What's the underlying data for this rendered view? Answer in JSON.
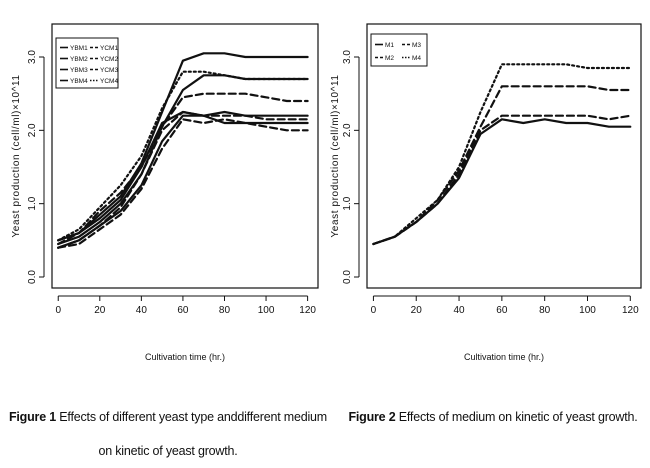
{
  "chart_data": [
    {
      "type": "line",
      "ylabel": "Yeast production (cell/ml)×10^11",
      "xlabel": "Cultivation time (hr.)",
      "xticks": [
        0,
        20,
        40,
        60,
        80,
        100,
        120
      ],
      "yticks": [
        "0.0",
        "1.0",
        "2.0",
        "3.0"
      ],
      "xlim": [
        -3,
        125
      ],
      "ylim": [
        -0.15,
        3.45
      ],
      "legend_position": "top-left",
      "legend_rows": [
        [
          "YBM1",
          "YCM1"
        ],
        [
          "YBM2",
          "YCM2"
        ],
        [
          "YBM3",
          "YCM3"
        ],
        [
          "YBM4",
          "YCM4"
        ]
      ],
      "x": [
        0,
        10,
        20,
        30,
        40,
        50,
        60,
        70,
        80,
        90,
        100,
        110,
        120
      ],
      "series": [
        {
          "name": "YBM1",
          "values": [
            0.4,
            0.5,
            0.7,
            0.9,
            1.25,
            1.85,
            2.2,
            2.2,
            2.1,
            2.1,
            2.1,
            2.1,
            2.1
          ]
        },
        {
          "name": "YBM2",
          "values": [
            0.45,
            0.55,
            0.75,
            1.0,
            1.4,
            2.05,
            2.55,
            2.75,
            2.75,
            2.7,
            2.7,
            2.7,
            2.7
          ]
        },
        {
          "name": "YBM3",
          "values": [
            0.5,
            0.6,
            0.8,
            1.05,
            1.5,
            2.1,
            2.25,
            2.2,
            2.25,
            2.2,
            2.2,
            2.2,
            2.2
          ]
        },
        {
          "name": "YBM4",
          "values": [
            0.5,
            0.6,
            0.85,
            1.1,
            1.55,
            2.25,
            2.95,
            3.05,
            3.05,
            3.0,
            3.0,
            3.0,
            3.0
          ]
        },
        {
          "name": "YCM1",
          "values": [
            0.4,
            0.45,
            0.65,
            0.85,
            1.2,
            1.75,
            2.15,
            2.1,
            2.15,
            2.1,
            2.05,
            2.0,
            2.0
          ]
        },
        {
          "name": "YCM2",
          "values": [
            0.45,
            0.6,
            0.9,
            1.15,
            1.5,
            2.05,
            2.45,
            2.5,
            2.5,
            2.5,
            2.45,
            2.4,
            2.4
          ]
        },
        {
          "name": "YCM3",
          "values": [
            0.4,
            0.5,
            0.7,
            0.95,
            1.4,
            2.0,
            2.25,
            2.2,
            2.2,
            2.2,
            2.15,
            2.15,
            2.15
          ]
        },
        {
          "name": "YCM4",
          "values": [
            0.5,
            0.65,
            0.95,
            1.25,
            1.65,
            2.3,
            2.8,
            2.8,
            2.75,
            2.7,
            2.7,
            2.7,
            2.7
          ]
        }
      ]
    },
    {
      "type": "line",
      "ylabel": "Yeast production (cell/ml)×10^11",
      "xlabel": "Cultivation time (hr.)",
      "xticks": [
        0,
        20,
        40,
        60,
        80,
        100,
        120
      ],
      "yticks": [
        "0.0",
        "1.0",
        "2.0",
        "3.0"
      ],
      "xlim": [
        -3,
        125
      ],
      "ylim": [
        -0.15,
        3.45
      ],
      "legend_position": "top-left",
      "legend_rows": [
        [
          "M1",
          "M3"
        ],
        [
          "M2",
          "M4"
        ]
      ],
      "x": [
        0,
        10,
        20,
        30,
        40,
        50,
        60,
        70,
        80,
        90,
        100,
        110,
        120
      ],
      "series": [
        {
          "name": "M1",
          "values": [
            0.45,
            0.55,
            0.75,
            1.0,
            1.35,
            1.95,
            2.15,
            2.1,
            2.15,
            2.1,
            2.1,
            2.05,
            2.05
          ]
        },
        {
          "name": "M2",
          "values": [
            0.45,
            0.55,
            0.75,
            1.05,
            1.45,
            2.05,
            2.6,
            2.6,
            2.6,
            2.6,
            2.6,
            2.55,
            2.55
          ]
        },
        {
          "name": "M3",
          "values": [
            0.45,
            0.55,
            0.75,
            1.0,
            1.4,
            2.0,
            2.2,
            2.2,
            2.2,
            2.2,
            2.2,
            2.15,
            2.2
          ]
        },
        {
          "name": "M4",
          "values": [
            0.45,
            0.55,
            0.8,
            1.05,
            1.5,
            2.25,
            2.9,
            2.9,
            2.9,
            2.9,
            2.85,
            2.85,
            2.85
          ]
        }
      ]
    }
  ],
  "captions": {
    "fig1_label": "Figure 1",
    "fig1_text": "Effects of different yeast type anddifferent medium on kinetic of yeast growth.",
    "fig2_label": "Figure 2",
    "fig2_text": "Effects of medium on kinetic of yeast growth."
  },
  "styles": {
    "line_color": "#111111",
    "dash_patterns": {
      "YBM1": "",
      "YBM2": "",
      "YBM3": "",
      "YBM4": "",
      "YCM1": "7,4",
      "YCM2": "7,4",
      "YCM3": "7,4",
      "YCM4": "2,3",
      "M1": "",
      "M2": "7,4",
      "M3": "7,4",
      "M4": "2,3"
    }
  }
}
